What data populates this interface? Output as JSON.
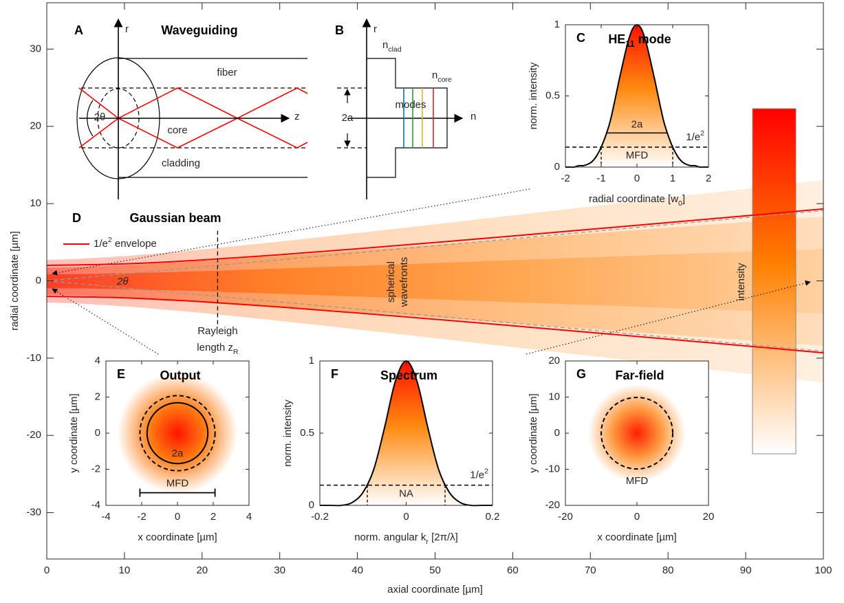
{
  "chart_data": [
    {
      "type": "line",
      "panel": "D",
      "title": "Gaussian beam",
      "x": [
        0,
        10,
        20,
        30,
        40,
        50,
        60,
        70,
        80,
        90,
        100
      ],
      "series": [
        {
          "name": {
            "text": "1/e",
            "sup": "2",
            "tail": " envelope"
          },
          "color": "#ff0000",
          "values": [
            2,
            2.2,
            2.7,
            3.38,
            4.15,
            4.97,
            5.81,
            6.67,
            7.54,
            8.42,
            9.31
          ],
          "lower": [
            -2,
            -2.2,
            -2.7,
            -3.38,
            -4.15,
            -4.97,
            -5.81,
            -6.67,
            -7.54,
            -8.42,
            -9.31
          ]
        }
      ],
      "divergence": {
        "label": "2θ",
        "color": "#999999",
        "x": [
          0,
          100
        ],
        "upper": [
          0,
          9.1
        ],
        "lower": [
          0,
          -9.1
        ]
      },
      "rayleigh": {
        "label": [
          "Rayleigh",
          {
            "text": "length z",
            "sub": "R"
          }
        ],
        "x": 22,
        "y": [
          6.5,
          -6
        ]
      },
      "wavefront_label": [
        "spherical",
        "wavefronts"
      ],
      "colorbar": {
        "label": "intensity"
      },
      "xlabel": "axial coordinate [µm]",
      "ylabel": "radial coordinate [µm]",
      "xlim": [
        0,
        100
      ],
      "ylim": [
        -36,
        36
      ],
      "xticks": [
        0,
        10,
        20,
        30,
        40,
        50,
        60,
        70,
        80,
        90,
        100
      ],
      "yticks": [
        -30,
        -20,
        -10,
        0,
        10,
        20,
        30
      ],
      "legend": "upper left"
    },
    {
      "type": "line",
      "panel": "C",
      "title": {
        "text": "HE",
        "sub": "11",
        "tail": " mode"
      },
      "x": [
        -2,
        -1.875,
        -1.75,
        -1.625,
        -1.5,
        -1.375,
        -1.25,
        -1.125,
        -1,
        -0.875,
        -0.75,
        -0.625,
        -0.5,
        -0.375,
        -0.25,
        -0.125,
        0,
        0.125,
        0.25,
        0.375,
        0.5,
        0.625,
        0.75,
        0.875,
        1,
        1.125,
        1.25,
        1.375,
        1.5,
        1.625,
        1.75,
        1.875,
        2
      ],
      "values": [
        0,
        0,
        0,
        0.01,
        0.01,
        0.02,
        0.04,
        0.08,
        0.14,
        0.22,
        0.32,
        0.46,
        0.61,
        0.75,
        0.88,
        0.97,
        1,
        0.97,
        0.88,
        0.75,
        0.61,
        0.46,
        0.32,
        0.22,
        0.14,
        0.08,
        0.04,
        0.02,
        0.01,
        0.01,
        0,
        0,
        0
      ],
      "color": "#000000",
      "core_marker": {
        "label": "2a",
        "y": 0.24,
        "x": [
          -0.85,
          0.85
        ]
      },
      "mfd_marker": {
        "label": "MFD",
        "level_label": {
          "text": "1/e",
          "sup": "2"
        },
        "y": 0.14,
        "x": [
          -1,
          1
        ]
      },
      "xlabel": {
        "text": "radial coordinate [w",
        "sub": "0",
        "tail": "]"
      },
      "ylabel": "norm. intensity",
      "xlim": [
        -2,
        2
      ],
      "ylim": [
        0,
        1
      ],
      "xticks": [
        -2,
        -1,
        0,
        1,
        2
      ],
      "yticks": [
        0,
        0.5,
        1
      ]
    },
    {
      "type": "image",
      "panel": "E",
      "title": "Output",
      "circles": [
        {
          "label": "2a",
          "r": 1.7,
          "style": "solid"
        },
        {
          "r": 2.1,
          "style": "dashed"
        }
      ],
      "mfd_bar": {
        "label": "MFD",
        "x": [
          -2.1,
          2.1
        ],
        "y": -3.3
      },
      "xlabel": "x coordinate [µm]",
      "ylabel": "y coordinate [µm]",
      "xlim": [
        -4,
        4
      ],
      "ylim": [
        -4,
        4
      ],
      "xticks": [
        -4,
        -2,
        0,
        2,
        4
      ],
      "yticks": [
        -4,
        -2,
        0,
        2,
        4
      ]
    },
    {
      "type": "line",
      "panel": "F",
      "title": "Spectrum",
      "x": [
        -0.2,
        -0.175,
        -0.15,
        -0.125,
        -0.1,
        -0.075,
        -0.05,
        -0.025,
        0,
        0.025,
        0.05,
        0.075,
        0.1,
        0.125,
        0.15,
        0.175,
        0.2
      ],
      "values": [
        0,
        0,
        0,
        0.02,
        0.09,
        0.25,
        0.54,
        0.86,
        1,
        0.86,
        0.54,
        0.25,
        0.09,
        0.02,
        0,
        0,
        0
      ],
      "color": "#000000",
      "mfd_marker": {
        "label": "NA",
        "level_label": {
          "text": "1/e",
          "sup": "2"
        },
        "y": 0.14,
        "x": [
          -0.09,
          0.09
        ]
      },
      "xlabel": {
        "text": "norm. angular k",
        "sub": "r",
        "tail": " [2π/λ]"
      },
      "ylabel": "norm. intensity",
      "xlim": [
        -0.2,
        0.2
      ],
      "ylim": [
        0,
        1
      ],
      "xticks": [
        -0.2,
        0,
        0.2
      ],
      "yticks": [
        0,
        0.5,
        1
      ]
    },
    {
      "type": "image",
      "panel": "G",
      "title": "Far-field",
      "circles": [
        {
          "label": "MFD",
          "r": 10,
          "style": "dashed"
        }
      ],
      "xlabel": "x coordinate [µm]",
      "ylabel": "y coordinate [µm]",
      "xlim": [
        -20,
        20
      ],
      "ylim": [
        -20,
        20
      ],
      "xticks": [
        -20,
        0,
        20
      ],
      "yticks": [
        -20,
        -10,
        0,
        10,
        20
      ]
    }
  ],
  "diagrams": {
    "A": {
      "panel": "A",
      "title": "Waveguiding",
      "r_axis": "r",
      "z_axis": "z",
      "fiber": "fiber",
      "core": "core",
      "cladding": "cladding",
      "angle": "2θ"
    },
    "B": {
      "panel": "B",
      "r_axis": "r",
      "n_axis": "n",
      "n_clad": {
        "text": "n",
        "sub": "clad"
      },
      "n_core": {
        "text": "n",
        "sub": "core"
      },
      "core_width": "2a",
      "modes": "modes"
    }
  }
}
